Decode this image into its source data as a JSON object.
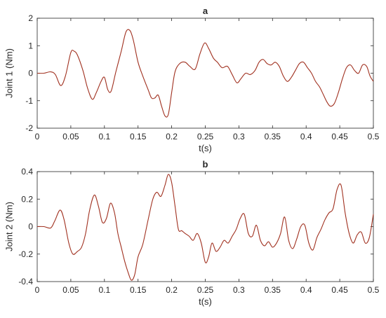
{
  "chart_data": [
    {
      "type": "line",
      "title": "a",
      "xlabel": "t(s)",
      "ylabel": "Joint 1 (Nm)",
      "xlim": [
        0,
        0.5
      ],
      "ylim": [
        -2,
        2
      ],
      "xticks": [
        "0",
        "0.05",
        "0.1",
        "0.15",
        "0.2",
        "0.25",
        "0.3",
        "0.35",
        "0.4",
        "0.45",
        "0.5"
      ],
      "yticks": [
        "-2",
        "-1",
        "0",
        "1",
        "2"
      ],
      "grid": false,
      "line_color": "#a0301f",
      "series": [
        {
          "x": [
            0,
            0.01,
            0.02,
            0.027,
            0.035,
            0.042,
            0.05,
            0.055,
            0.06,
            0.068,
            0.075,
            0.082,
            0.088,
            0.095,
            0.1,
            0.105,
            0.11,
            0.117,
            0.125,
            0.132,
            0.138,
            0.143,
            0.15,
            0.157,
            0.165,
            0.17,
            0.175,
            0.18,
            0.185,
            0.19,
            0.195,
            0.2,
            0.205,
            0.212,
            0.22,
            0.227,
            0.235,
            0.242,
            0.249,
            0.255,
            0.262,
            0.268,
            0.275,
            0.283,
            0.29,
            0.297,
            0.303,
            0.31,
            0.317,
            0.324,
            0.33,
            0.336,
            0.342,
            0.348,
            0.354,
            0.36,
            0.366,
            0.372,
            0.378,
            0.384,
            0.39,
            0.396,
            0.402,
            0.408,
            0.414,
            0.42,
            0.426,
            0.431,
            0.436,
            0.442,
            0.448,
            0.454,
            0.46,
            0.466,
            0.472,
            0.478,
            0.484,
            0.49,
            0.495,
            0.5
          ],
          "y": [
            0,
            0,
            0.05,
            -0.05,
            -0.45,
            -0.1,
            0.75,
            0.8,
            0.65,
            0.1,
            -0.55,
            -0.95,
            -0.7,
            -0.3,
            -0.15,
            -0.6,
            -0.65,
            0.05,
            0.8,
            1.5,
            1.55,
            1.2,
            0.4,
            -0.1,
            -0.6,
            -0.9,
            -0.9,
            -0.8,
            -1.2,
            -1.55,
            -1.5,
            -0.7,
            0.05,
            0.35,
            0.4,
            0.25,
            0.15,
            0.7,
            1.1,
            0.9,
            0.55,
            0.4,
            0.2,
            0.25,
            -0.05,
            -0.35,
            -0.2,
            0,
            -0.05,
            0.1,
            0.4,
            0.5,
            0.35,
            0.3,
            0.4,
            0.25,
            -0.1,
            -0.3,
            -0.15,
            0.1,
            0.35,
            0.4,
            0.2,
            0,
            -0.3,
            -0.5,
            -0.8,
            -1.05,
            -1.2,
            -1.1,
            -0.7,
            -0.2,
            0.2,
            0.3,
            0.1,
            0,
            0.3,
            0.25,
            -0.1,
            -0.3
          ]
        }
      ]
    },
    {
      "type": "line",
      "title": "b",
      "xlabel": "t(s)",
      "ylabel": "Joint 2 (Nm)",
      "xlim": [
        0,
        0.5
      ],
      "ylim": [
        -0.4,
        0.4
      ],
      "xticks": [
        "0",
        "0.05",
        "0.1",
        "0.15",
        "0.2",
        "0.25",
        "0.3",
        "0.35",
        "0.4",
        "0.45",
        "0.5"
      ],
      "yticks": [
        "-0.4",
        "-0.2",
        "0",
        "0.2",
        "0.4"
      ],
      "grid": false,
      "line_color": "#a0301f",
      "series": [
        {
          "x": [
            0,
            0.01,
            0.02,
            0.026,
            0.034,
            0.04,
            0.047,
            0.053,
            0.06,
            0.066,
            0.072,
            0.078,
            0.085,
            0.091,
            0.097,
            0.103,
            0.109,
            0.115,
            0.12,
            0.125,
            0.13,
            0.135,
            0.14,
            0.145,
            0.15,
            0.157,
            0.165,
            0.172,
            0.178,
            0.184,
            0.19,
            0.195,
            0.2,
            0.205,
            0.21,
            0.215,
            0.22,
            0.226,
            0.232,
            0.238,
            0.244,
            0.25,
            0.255,
            0.26,
            0.266,
            0.272,
            0.278,
            0.284,
            0.29,
            0.296,
            0.302,
            0.308,
            0.314,
            0.32,
            0.326,
            0.332,
            0.338,
            0.344,
            0.35,
            0.356,
            0.362,
            0.368,
            0.374,
            0.38,
            0.386,
            0.392,
            0.398,
            0.404,
            0.41,
            0.416,
            0.422,
            0.428,
            0.434,
            0.44,
            0.446,
            0.452,
            0.458,
            0.464,
            0.47,
            0.476,
            0.482,
            0.488,
            0.494,
            0.5
          ],
          "y": [
            0,
            0,
            -0.01,
            0.04,
            0.12,
            0.05,
            -0.12,
            -0.2,
            -0.18,
            -0.15,
            -0.05,
            0.12,
            0.23,
            0.15,
            0.03,
            0.06,
            0.17,
            0.1,
            -0.05,
            -0.15,
            -0.25,
            -0.33,
            -0.39,
            -0.35,
            -0.22,
            -0.13,
            0.05,
            0.2,
            0.25,
            0.22,
            0.3,
            0.38,
            0.32,
            0.15,
            -0.02,
            -0.03,
            -0.05,
            -0.07,
            -0.1,
            -0.05,
            -0.12,
            -0.26,
            -0.22,
            -0.12,
            -0.18,
            -0.15,
            -0.1,
            -0.12,
            -0.07,
            -0.02,
            0.06,
            0.09,
            -0.05,
            -0.07,
            0.01,
            -0.1,
            -0.14,
            -0.11,
            -0.15,
            -0.12,
            -0.05,
            0.07,
            -0.1,
            -0.16,
            -0.09,
            0,
            0.01,
            -0.12,
            -0.17,
            -0.08,
            -0.02,
            0.05,
            0.1,
            0.13,
            0.27,
            0.3,
            0.1,
            -0.05,
            -0.12,
            -0.06,
            -0.04,
            -0.12,
            -0.08,
            0.09
          ]
        }
      ]
    }
  ]
}
